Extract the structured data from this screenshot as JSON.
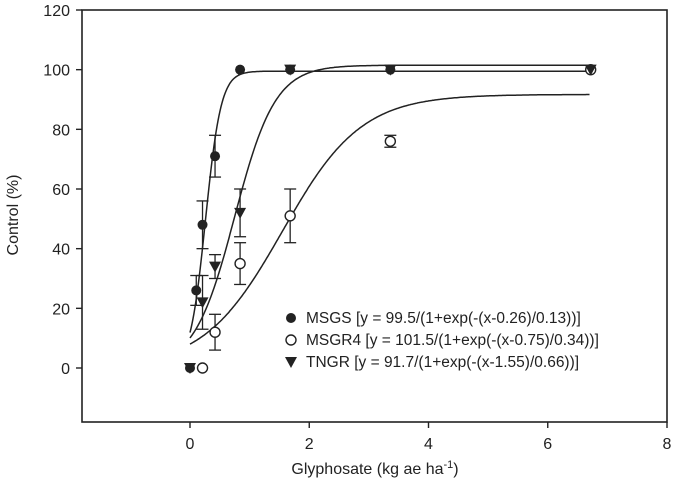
{
  "chart_data": {
    "type": "scatter",
    "title": "",
    "xlabel": "Glyphosate (kg ae ha-1)",
    "xlabel_main": "Glyphosate (kg ae ha",
    "xlabel_sup": "-1",
    "xlabel_close": ")",
    "ylabel": "Control (%)",
    "xlim": [
      -1.8,
      8
    ],
    "ylim": [
      -17,
      120
    ],
    "xticks": [
      0,
      2,
      4,
      6,
      8
    ],
    "yticks": [
      0,
      20,
      40,
      60,
      80,
      100,
      120
    ],
    "grid": false,
    "legend_position": "lower right",
    "series": [
      {
        "name": "MSGS",
        "marker": "filled-circle",
        "equation": "[y = 99.5/(1+exp(-(x-0.26)/0.13))]",
        "fit": {
          "a": 99.5,
          "x0": 0.26,
          "b": 0.13
        },
        "x": [
          0,
          0.105,
          0.21,
          0.42,
          0.84,
          1.68,
          3.36,
          6.72
        ],
        "values": [
          0,
          26,
          48,
          71,
          100,
          100,
          100,
          100
        ],
        "err": [
          0,
          5,
          8,
          7,
          0,
          0,
          0,
          0
        ]
      },
      {
        "name": "MSGR4",
        "marker": "open-circle",
        "equation": "[y = 101.5/(1+exp(-(x-0.75)/0.34))]",
        "fit": {
          "a": 101.5,
          "x0": 0.75,
          "b": 0.34
        },
        "x": [
          0.21,
          0.42,
          0.84,
          1.68,
          3.36,
          6.72
        ],
        "values": [
          0,
          12,
          35,
          51,
          76,
          100
        ],
        "err": [
          0,
          6,
          7,
          9,
          2,
          0
        ]
      },
      {
        "name": "TNGR",
        "marker": "filled-triangle-down",
        "equation": "[y = 91.7/(1+exp(-(x-1.55)/0.66))]",
        "fit": {
          "a": 91.7,
          "x0": 1.55,
          "b": 0.66
        },
        "x": [
          0,
          0.21,
          0.42,
          0.84,
          1.68,
          3.36,
          6.72
        ],
        "values": [
          0,
          22,
          34,
          52,
          100,
          100,
          100
        ],
        "err": [
          0,
          9,
          4,
          8,
          0,
          0,
          0
        ]
      }
    ],
    "curves_drawn": [
      {
        "a": 99.5,
        "x0": 0.26,
        "b": 0.13
      },
      {
        "a": 101.5,
        "x0": 0.75,
        "b": 0.34
      },
      {
        "a": 91.7,
        "x0": 1.55,
        "b": 0.66
      }
    ]
  }
}
